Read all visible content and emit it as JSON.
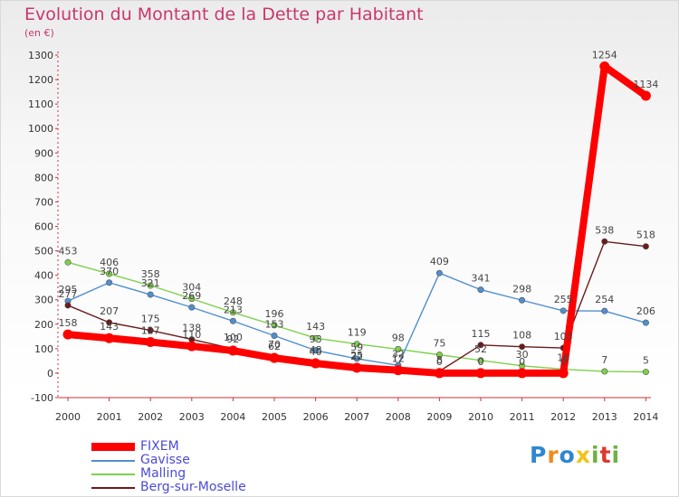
{
  "title": "Evolution du Montant de la Dette par Habitant",
  "unit_label": "(en €)",
  "logo": {
    "letters": [
      "P",
      "r",
      "o",
      "x",
      "i",
      "t",
      "i"
    ],
    "colors": [
      "#2f86d2",
      "#f08a1d",
      "#2f86d2",
      "#f2c318",
      "#6cb33f",
      "#d93a2b",
      "#6cb33f"
    ]
  },
  "chart_data": {
    "type": "line",
    "title": "Evolution du Montant de la Dette par Habitant",
    "ylabel": "(en €)",
    "x": [
      "2000",
      "2001",
      "2002",
      "2003",
      "2004",
      "2005",
      "2006",
      "2007",
      "2008",
      "2009",
      "2010",
      "2011",
      "2012",
      "2013",
      "2014"
    ],
    "ylim": [
      -100,
      1300
    ],
    "yticks": [
      "-100",
      "0",
      "100",
      "200",
      "300",
      "400",
      "500",
      "600",
      "700",
      "800",
      "900",
      "1000",
      "1100",
      "1200",
      "1300"
    ],
    "ytick_values": [
      -100,
      0,
      100,
      200,
      300,
      400,
      500,
      600,
      700,
      800,
      900,
      1000,
      1100,
      1200,
      1300
    ],
    "grid": false,
    "legend_position": "bottom-left",
    "series": [
      {
        "name": "FIXEM",
        "color": "#ff0000",
        "values": [
          158,
          143,
          127,
          110,
          92,
          62,
          40,
          22,
          12,
          0,
          0,
          0,
          0,
          1254,
          1134
        ],
        "labels": [
          "158",
          "143",
          "127",
          "110",
          "92",
          "62",
          "40",
          "22",
          "12",
          "0",
          "0",
          "0",
          "0",
          "1254",
          "1134"
        ]
      },
      {
        "name": "Gavisse",
        "color": "#4f8fcf",
        "values": [
          295,
          370,
          321,
          269,
          213,
          153,
          93,
          59,
          32,
          409,
          341,
          298,
          255,
          254,
          206
        ],
        "labels": [
          "295",
          "370",
          "321",
          "269",
          "213",
          "153",
          "93",
          "59",
          "32",
          "409",
          "341",
          "298",
          "255",
          "254",
          "206"
        ]
      },
      {
        "name": "Malling",
        "color": "#7ed04b",
        "values": [
          453,
          406,
          358,
          304,
          248,
          196,
          143,
          119,
          98,
          75,
          52,
          30,
          16,
          7,
          5
        ],
        "labels": [
          "453",
          "406",
          "358",
          "304",
          "248",
          "196",
          "143",
          "119",
          "98",
          "75",
          "52",
          "30",
          "16",
          "7",
          "5"
        ]
      },
      {
        "name": "Berg-sur-Moselle",
        "color": "#6b1a1a",
        "values": [
          277,
          207,
          175,
          138,
          100,
          70,
          48,
          25,
          12,
          8,
          115,
          108,
          103,
          538,
          518
        ],
        "labels": [
          "277",
          "207",
          "175",
          "138",
          "100",
          "70",
          "48",
          "25",
          "12",
          "8",
          "115",
          "108",
          "103",
          "538",
          "518"
        ]
      }
    ]
  }
}
